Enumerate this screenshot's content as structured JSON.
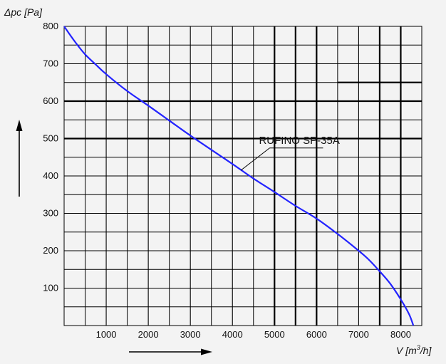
{
  "chart_data": {
    "type": "line",
    "title": "",
    "ylabel": "Δpc [Pa]",
    "xlabel": {
      "prefix": "V [m",
      "sup": "3",
      "suffix": "/h]"
    },
    "xlim": [
      0,
      8500
    ],
    "ylim": [
      0,
      800
    ],
    "x_ticks": [
      1000,
      2000,
      3000,
      4000,
      5000,
      6000,
      7000,
      8000
    ],
    "y_ticks": [
      100,
      200,
      300,
      400,
      500,
      600,
      700,
      800
    ],
    "x_minor_step": 500,
    "y_minor_step": 50,
    "grid": true,
    "series": [
      {
        "name": "RUFINO SP-35A",
        "color": "#2323ff",
        "points": [
          [
            0,
            800
          ],
          [
            250,
            760
          ],
          [
            500,
            725
          ],
          [
            750,
            698
          ],
          [
            1000,
            672
          ],
          [
            1500,
            627
          ],
          [
            2000,
            588
          ],
          [
            2500,
            548
          ],
          [
            3000,
            508
          ],
          [
            3500,
            470
          ],
          [
            4000,
            432
          ],
          [
            4500,
            393
          ],
          [
            5000,
            357
          ],
          [
            5500,
            320
          ],
          [
            6000,
            286
          ],
          [
            6500,
            245
          ],
          [
            7000,
            200
          ],
          [
            7250,
            175
          ],
          [
            7500,
            145
          ],
          [
            7750,
            112
          ],
          [
            8000,
            70
          ],
          [
            8200,
            30
          ],
          [
            8300,
            0
          ]
        ]
      }
    ]
  }
}
